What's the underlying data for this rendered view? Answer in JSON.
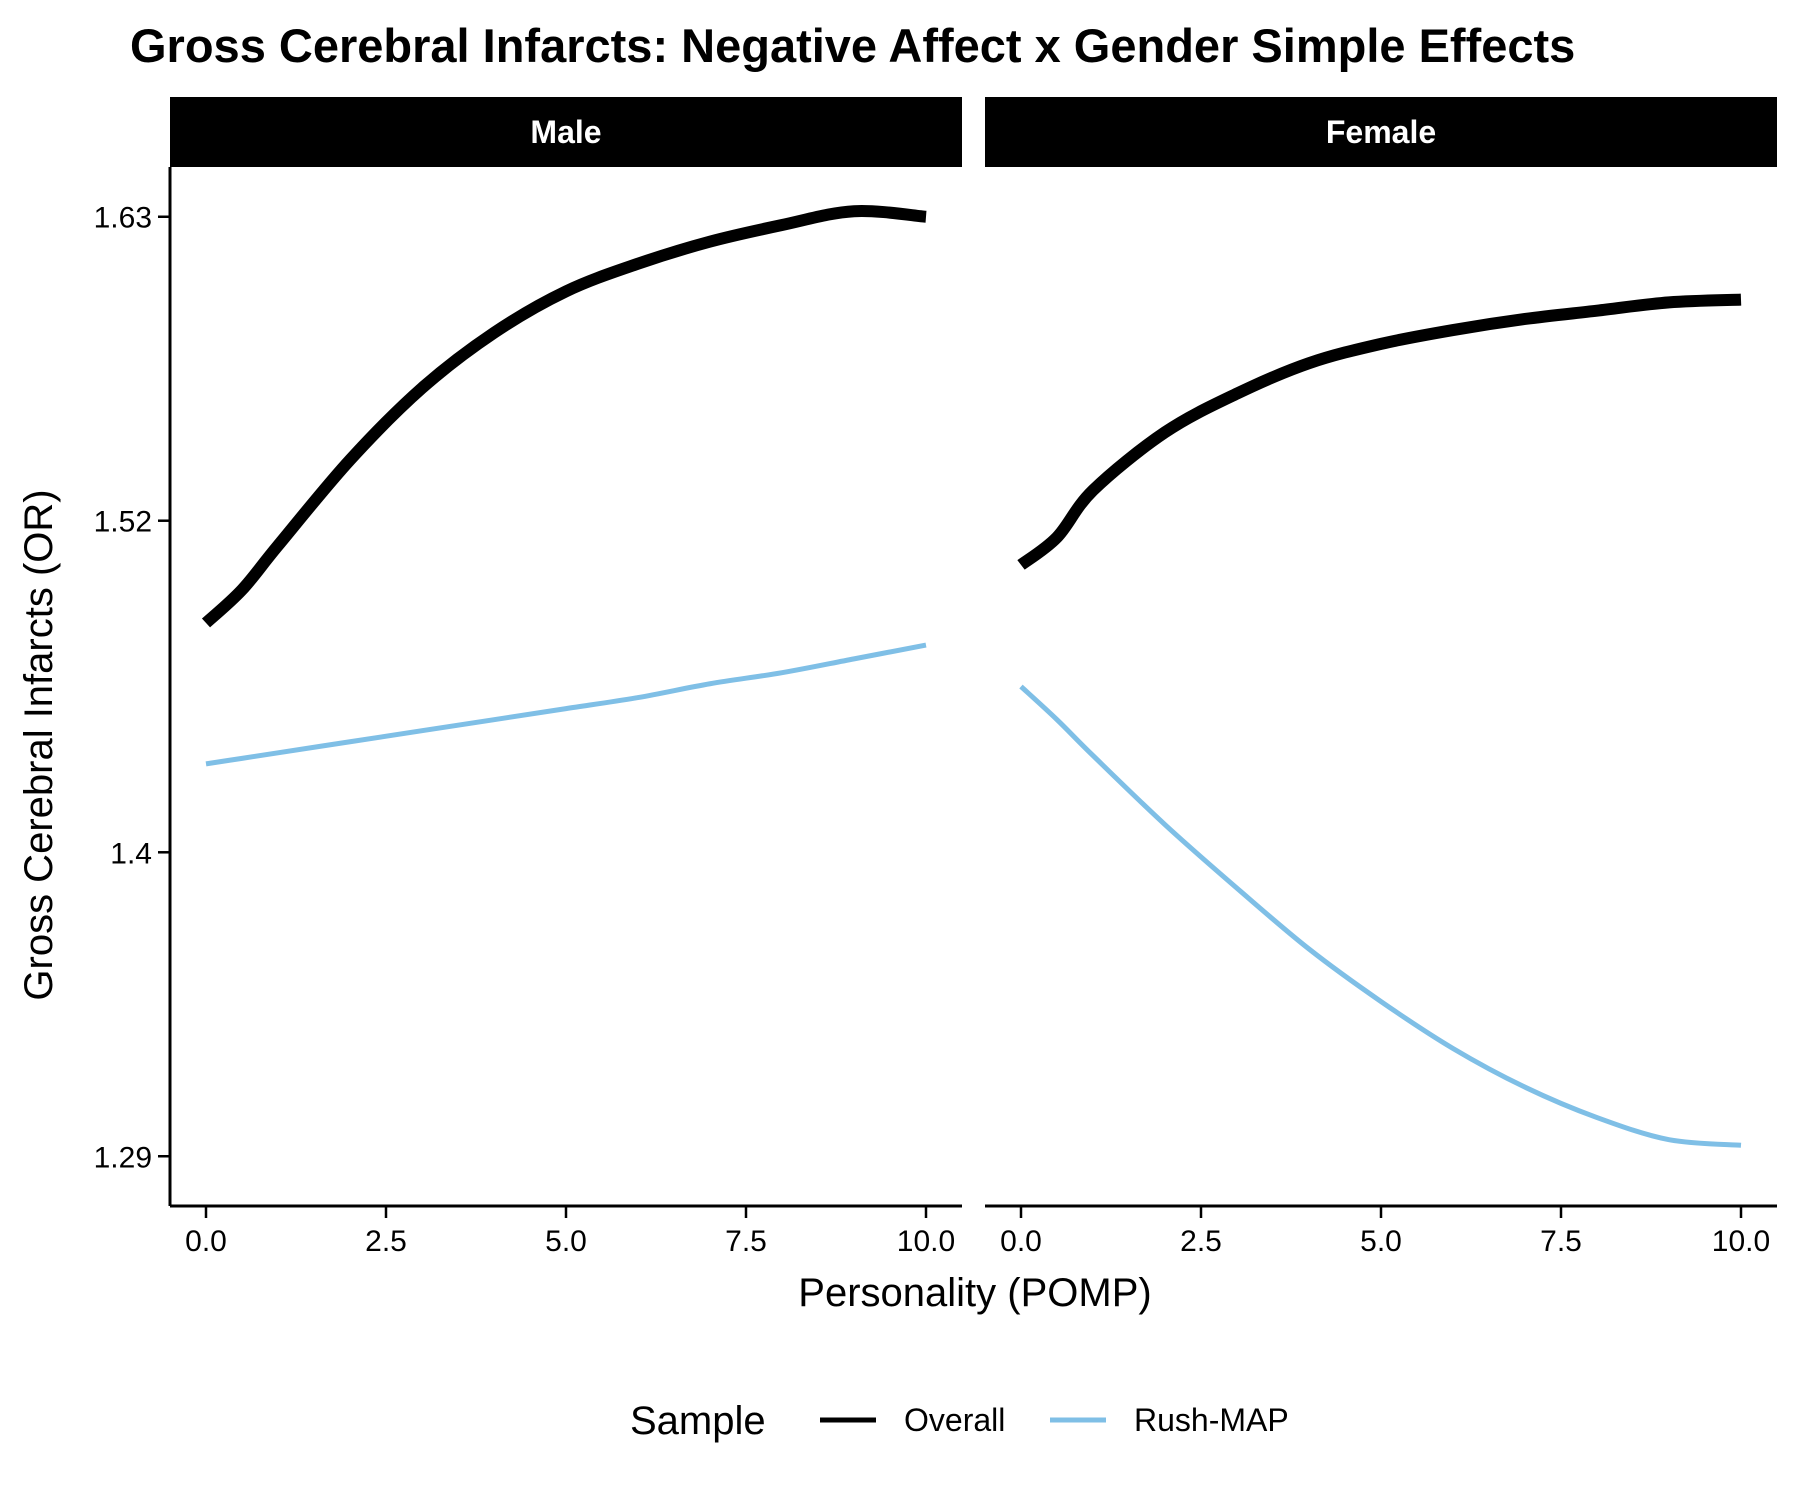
{
  "chart_data": {
    "type": "line",
    "title": "Gross Cerebral Infarcts: Negative Affect x Gender Simple Effects",
    "xlabel": "Personality (POMP)",
    "ylabel": "Gross Cerebral Infarcts (OR)",
    "xlim": [
      -0.5,
      10.5
    ],
    "ylim": [
      1.272,
      1.648
    ],
    "x_ticks": [
      0,
      2.5,
      5,
      7.5,
      10
    ],
    "x_tick_labels": [
      "0.0",
      "2.5",
      "5.0",
      "7.5",
      "10.0"
    ],
    "y_ticks": [
      1.29,
      1.4,
      1.52,
      1.63
    ],
    "y_tick_labels": [
      "1.29",
      "1.4",
      "1.52",
      "1.63"
    ],
    "grid": false,
    "legend": {
      "title": "Sample",
      "position": "bottom",
      "entries": [
        {
          "label": "Overall",
          "color": "#000000"
        },
        {
          "label": "Rush-MAP",
          "color": "#7fbfe6"
        }
      ]
    },
    "x": [
      0,
      0.5,
      1,
      2,
      3,
      4,
      5,
      6,
      7,
      8,
      9,
      10
    ],
    "panels": [
      {
        "label": "Male",
        "series": [
          {
            "name": "Overall",
            "color": "#000000",
            "values": [
              1.483,
              1.495,
              1.511,
              1.542,
              1.568,
              1.588,
              1.603,
              1.613,
              1.621,
              1.627,
              1.632,
              1.63
            ]
          },
          {
            "name": "Rush-MAP",
            "color": "#7fbfe6",
            "values": [
              1.432,
              1.434,
              1.436,
              1.44,
              1.444,
              1.448,
              1.452,
              1.456,
              1.461,
              1.465,
              1.47,
              1.475
            ]
          }
        ]
      },
      {
        "label": "Female",
        "series": [
          {
            "name": "Overall",
            "color": "#000000",
            "values": [
              1.504,
              1.514,
              1.531,
              1.552,
              1.566,
              1.577,
              1.584,
              1.589,
              1.593,
              1.596,
              1.599,
              1.6
            ]
          },
          {
            "name": "Rush-MAP",
            "color": "#7fbfe6",
            "values": [
              1.46,
              1.448,
              1.435,
              1.41,
              1.387,
              1.365,
              1.346,
              1.329,
              1.315,
              1.304,
              1.296,
              1.294
            ]
          }
        ]
      }
    ]
  }
}
